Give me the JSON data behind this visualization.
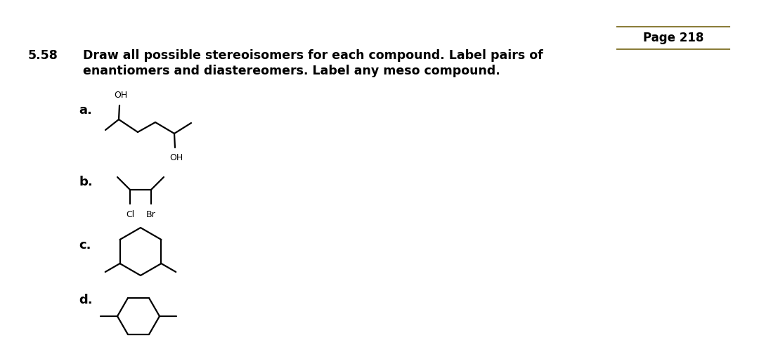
{
  "background_color": "#ffffff",
  "page_label": "Page 218",
  "page_label_fontsize": 12,
  "page_box_color": "#8B7D3A",
  "problem_number": "5.58",
  "problem_text_line1": "Draw all possible stereoisomers for each compound. Label pairs of",
  "problem_text_line2": "enantiomers and diastereomers. Label any meso compound.",
  "problem_fontsize": 12.5,
  "label_fontsize": 13,
  "line_color": "#000000",
  "text_color": "#000000",
  "lw": 1.6
}
